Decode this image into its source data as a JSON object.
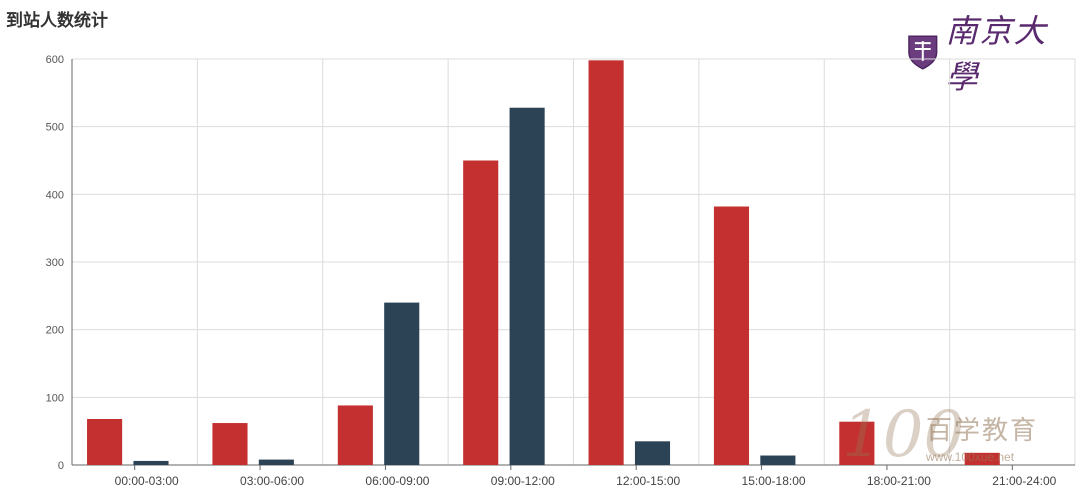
{
  "header": {
    "title": "到站人数统计"
  },
  "logo": {
    "text": "南京大學",
    "icon": "university-crest-icon"
  },
  "watermark": {
    "number": "100",
    "text": "百学教育",
    "url": "www.100xue.net"
  },
  "colors": {
    "red": "#c3302f",
    "navy": "#2c4355",
    "grid": "#dcdcdc",
    "axis": "#666666"
  },
  "chart_data": {
    "type": "bar",
    "title": "到站人数统计",
    "categories": [
      "00:00-03:00",
      "03:00-06:00",
      "06:00-09:00",
      "09:00-12:00",
      "12:00-15:00",
      "15:00-18:00",
      "18:00-21:00",
      "21:00-24:00"
    ],
    "series": [
      {
        "values": [
          68,
          62,
          88,
          450,
          598,
          382,
          64,
          18
        ]
      },
      {
        "values": [
          6,
          8,
          240,
          528,
          35,
          14,
          0,
          0
        ]
      }
    ],
    "ylim": [
      0,
      600
    ],
    "yticks": [
      0,
      100,
      200,
      300,
      400,
      500,
      600
    ],
    "grid": true
  }
}
